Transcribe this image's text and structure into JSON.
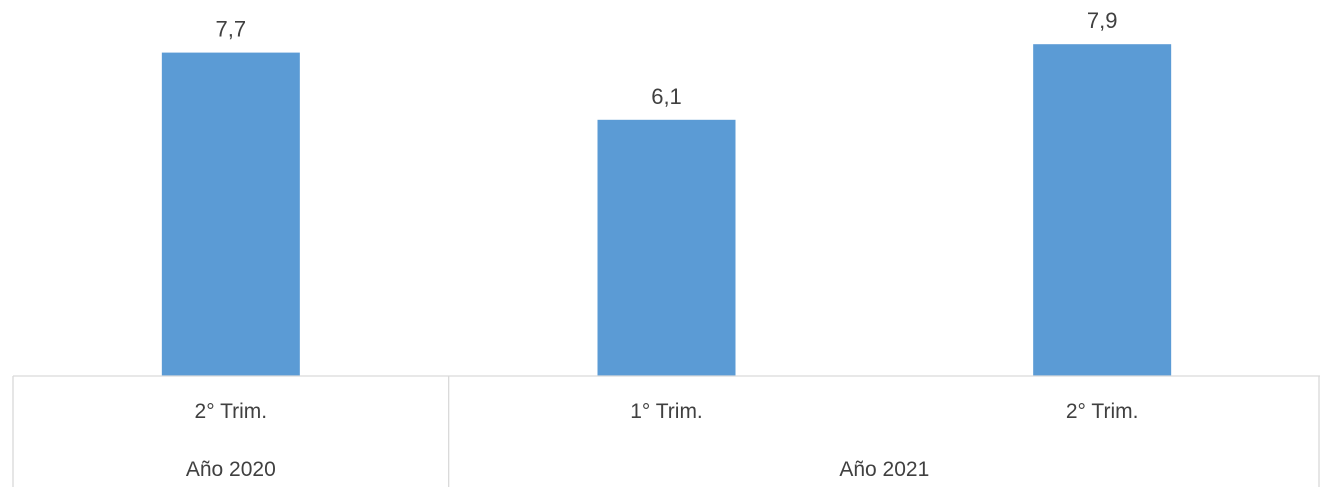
{
  "chart_data": {
    "type": "bar",
    "categories": [
      "2° Trim.",
      "1° Trim.",
      "2° Trim."
    ],
    "groups": [
      {
        "label": "Año 2020",
        "span": 1
      },
      {
        "label": "Año 2021",
        "span": 2
      }
    ],
    "values": [
      7.7,
      6.1,
      7.9
    ],
    "value_labels": [
      "7,7",
      "6,1",
      "7,9"
    ],
    "ylim": [
      0,
      8.0
    ],
    "grid": false,
    "legend": "none",
    "title": "",
    "xlabel": "",
    "ylabel": "",
    "colors": {
      "bar": "#5b9bd5",
      "axis": "#d9d9d9",
      "text": "#404040"
    }
  }
}
